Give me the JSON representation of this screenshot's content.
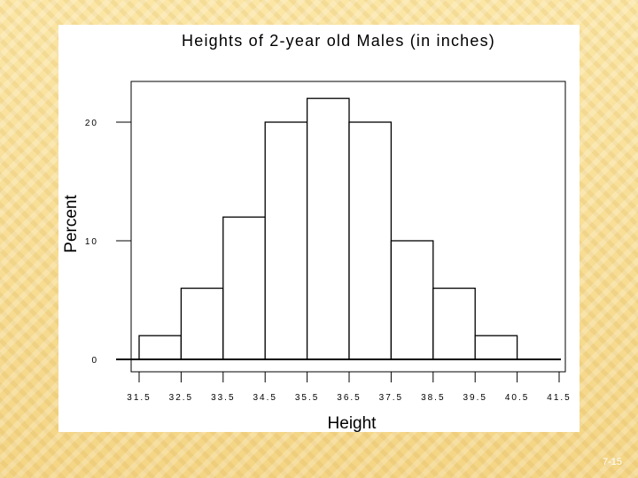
{
  "slide": {
    "number": "7-15"
  },
  "chart_data": {
    "type": "bar",
    "title": "Heights of 2-year old Males (in inches)",
    "xlabel": "Height",
    "ylabel": "Percent",
    "bin_edges": [
      31.5,
      32.5,
      33.5,
      34.5,
      35.5,
      36.5,
      37.5,
      38.5,
      39.5,
      40.5,
      41.5
    ],
    "x_tick_labels": [
      "31.5",
      "32.5",
      "33.5",
      "34.5",
      "35.5",
      "36.5",
      "37.5",
      "38.5",
      "39.5",
      "40.5",
      "41.5"
    ],
    "bins": [
      {
        "from": 31.5,
        "to": 32.5,
        "value": 2
      },
      {
        "from": 32.5,
        "to": 33.5,
        "value": 6
      },
      {
        "from": 33.5,
        "to": 34.5,
        "value": 12
      },
      {
        "from": 34.5,
        "to": 35.5,
        "value": 20
      },
      {
        "from": 35.5,
        "to": 36.5,
        "value": 22
      },
      {
        "from": 36.5,
        "to": 37.5,
        "value": 20
      },
      {
        "from": 37.5,
        "to": 38.5,
        "value": 10
      },
      {
        "from": 38.5,
        "to": 39.5,
        "value": 6
      },
      {
        "from": 39.5,
        "to": 40.5,
        "value": 2
      },
      {
        "from": 40.5,
        "to": 41.5,
        "value": 0
      }
    ],
    "y_ticks": [
      0,
      10,
      20
    ],
    "y_tick_labels": [
      "0",
      "10",
      "20"
    ],
    "ylim": [
      -1,
      25
    ],
    "xlim": [
      31.5,
      41.5
    ],
    "grid": false,
    "colors": {
      "bar_fill": "#ffffff",
      "bar_stroke": "#000000",
      "frame": "#000000",
      "text": "#000000"
    }
  }
}
